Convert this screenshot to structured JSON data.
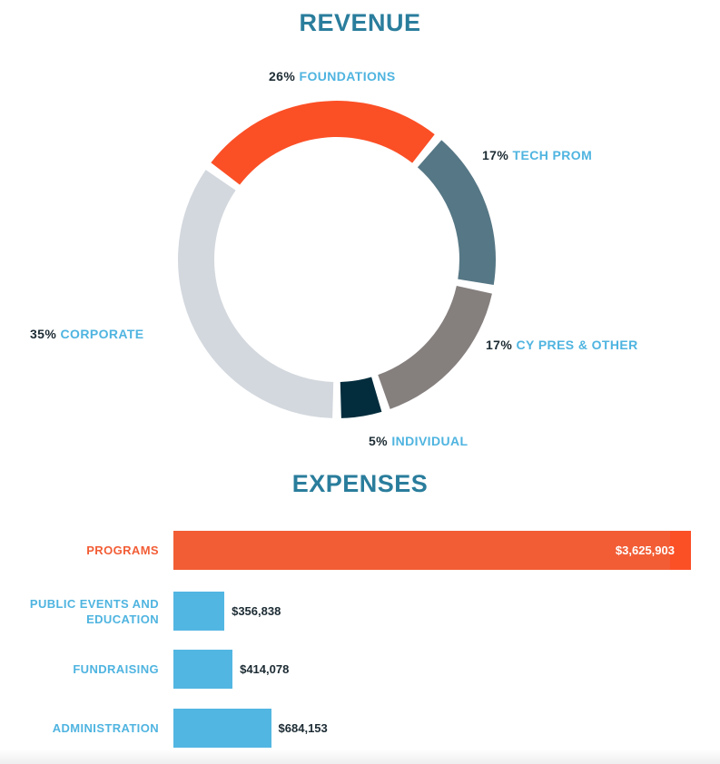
{
  "chart_data": [
    {
      "type": "pie",
      "title": "REVENUE",
      "donut": true,
      "slices": [
        {
          "label": "INDIVIDUAL",
          "pct_text": "5%",
          "value": 5,
          "color": "#032d3d"
        },
        {
          "label": "CY PRES & OTHER",
          "pct_text": "17%",
          "value": 17,
          "color": "#857f7e"
        },
        {
          "label": "TECH PROM",
          "pct_text": "17%",
          "value": 17,
          "color": "#567785"
        },
        {
          "label": "FOUNDATIONS",
          "pct_text": "26%",
          "value": 26,
          "color": "#fb4f26"
        },
        {
          "label": "CORPORATE",
          "pct_text": "35%",
          "value": 35,
          "color": "#d3d8de"
        }
      ]
    },
    {
      "type": "bar",
      "orientation": "horizontal",
      "title": "EXPENSES",
      "categories": [
        "PROGRAMS",
        "PUBLIC EVENTS AND EDUCATION",
        "FUNDRAISING",
        "ADMINISTRATION"
      ],
      "values": [
        3625903,
        356838,
        414078,
        684153
      ],
      "value_labels": [
        "$3,625,903",
        "$356,838",
        "$414,078",
        "$684,153"
      ],
      "colors": [
        "#f25d35",
        "#52b6e2",
        "#52b6e2",
        "#52b6e2"
      ],
      "label_colors": [
        "#f25d35",
        "#4fb4e0",
        "#4fb4e0",
        "#4fb4e0"
      ]
    }
  ]
}
